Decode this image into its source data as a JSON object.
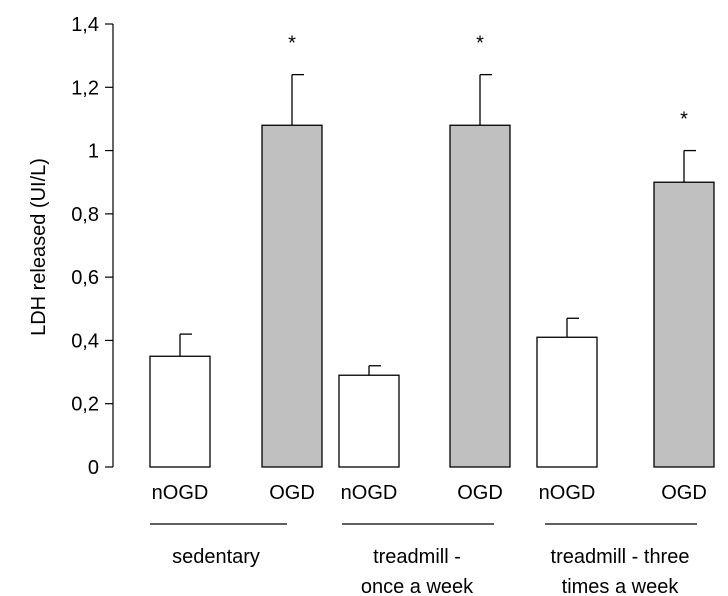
{
  "chart_data": {
    "type": "bar",
    "ylabel": "LDH released (UI/L)",
    "ylim": [
      0,
      1.4
    ],
    "y_ticks": [
      "0",
      "0,2",
      "0,4",
      "0,6",
      "0,8",
      "1",
      "1,2",
      "1,4"
    ],
    "y_tick_values": [
      0,
      0.2,
      0.4,
      0.6,
      0.8,
      1.0,
      1.2,
      1.4
    ],
    "grid": false,
    "colors": {
      "nOGD": "#ffffff",
      "OGD": "#c0c0c0",
      "stroke": "#000000"
    },
    "bars": [
      {
        "group": 0,
        "label": "nOGD",
        "value": 0.35,
        "error": 0.07,
        "sig": ""
      },
      {
        "group": 0,
        "label": "OGD",
        "value": 1.08,
        "error": 0.16,
        "sig": "*"
      },
      {
        "group": 1,
        "label": "nOGD",
        "value": 0.29,
        "error": 0.03,
        "sig": ""
      },
      {
        "group": 1,
        "label": "OGD",
        "value": 1.08,
        "error": 0.16,
        "sig": "*"
      },
      {
        "group": 2,
        "label": "nOGD",
        "value": 0.41,
        "error": 0.06,
        "sig": ""
      },
      {
        "group": 2,
        "label": "OGD",
        "value": 0.9,
        "error": 0.1,
        "sig": "*"
      }
    ],
    "groups": [
      {
        "lines": [
          "sedentary"
        ]
      },
      {
        "lines": [
          "treadmill -",
          "once a week"
        ]
      },
      {
        "lines": [
          "treadmill - three",
          "times a week"
        ]
      }
    ]
  }
}
